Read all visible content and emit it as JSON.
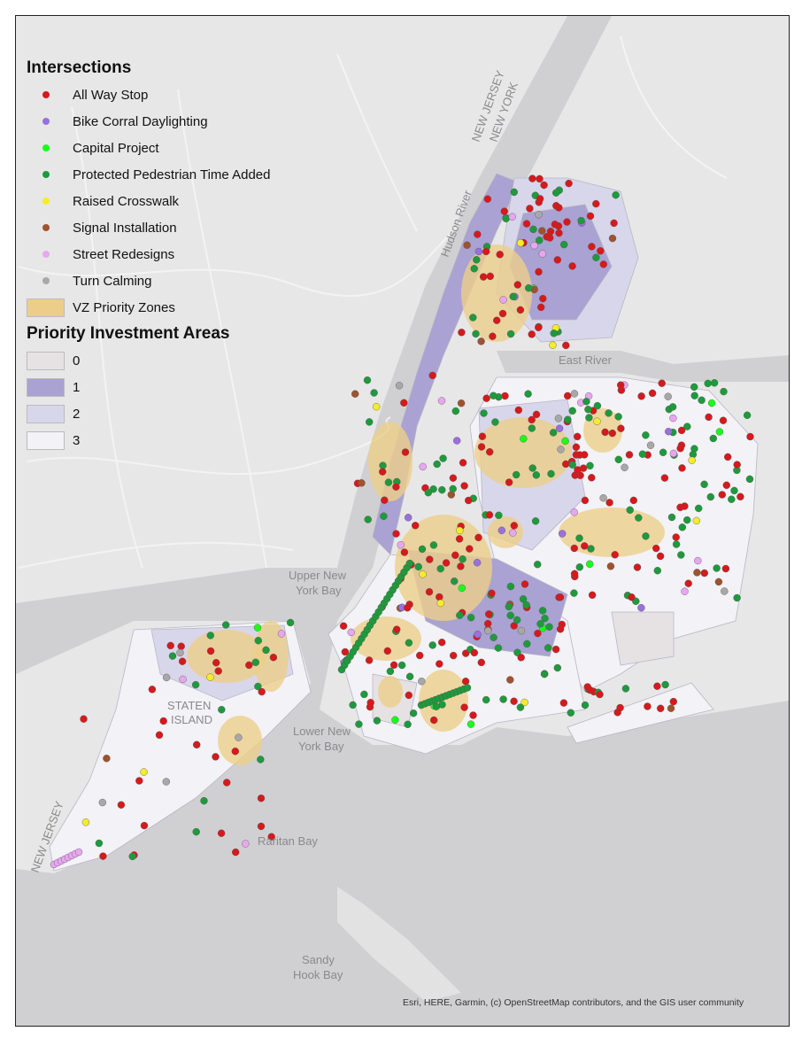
{
  "legend": {
    "intersections_title": "Intersections",
    "intersections": [
      {
        "label": "All Way Stop",
        "color": "#d7191c"
      },
      {
        "label": "Bike Corral Daylighting",
        "color": "#9b6fe0"
      },
      {
        "label": "Capital Project",
        "color": "#1aff1a"
      },
      {
        "label": "Protected Pedestrian Time Added",
        "color": "#1e9a3c"
      },
      {
        "label": "Raised Crosswalk",
        "color": "#f5ec2a"
      },
      {
        "label": "Signal Installation",
        "color": "#a0522d"
      },
      {
        "label": "Street Redesigns",
        "color": "#e8a6f0"
      },
      {
        "label": "Turn Calming",
        "color": "#a8a8a8"
      }
    ],
    "zones": {
      "label": "VZ Priority Zones",
      "color": "#ecce8a"
    },
    "areas_title": "Priority Investment Areas",
    "areas": [
      {
        "label": "0",
        "color": "#e6e2e4"
      },
      {
        "label": "1",
        "color": "#a9a2d2"
      },
      {
        "label": "2",
        "color": "#d8d6ea"
      },
      {
        "label": "3",
        "color": "#f2f2f7"
      }
    ]
  },
  "map_labels": {
    "nj_ny_1": "NEW JERSEY",
    "nj_ny_2": "NEW YORK",
    "hudson": "Hudson River",
    "east_river": "East River",
    "upper_bay_1": "Upper New",
    "upper_bay_2": "York Bay",
    "staten_1": "STATEN",
    "staten_2": "ISLAND",
    "lower_bay_1": "Lower New",
    "lower_bay_2": "York Bay",
    "raritan": "Raritan Bay",
    "sandy_1": "Sandy",
    "sandy_2": "Hook Bay",
    "nj_sw": "NEW JERSEY"
  },
  "credit": "Esri, HERE, Garmin, (c) OpenStreetMap contributors, and the GIS user community"
}
